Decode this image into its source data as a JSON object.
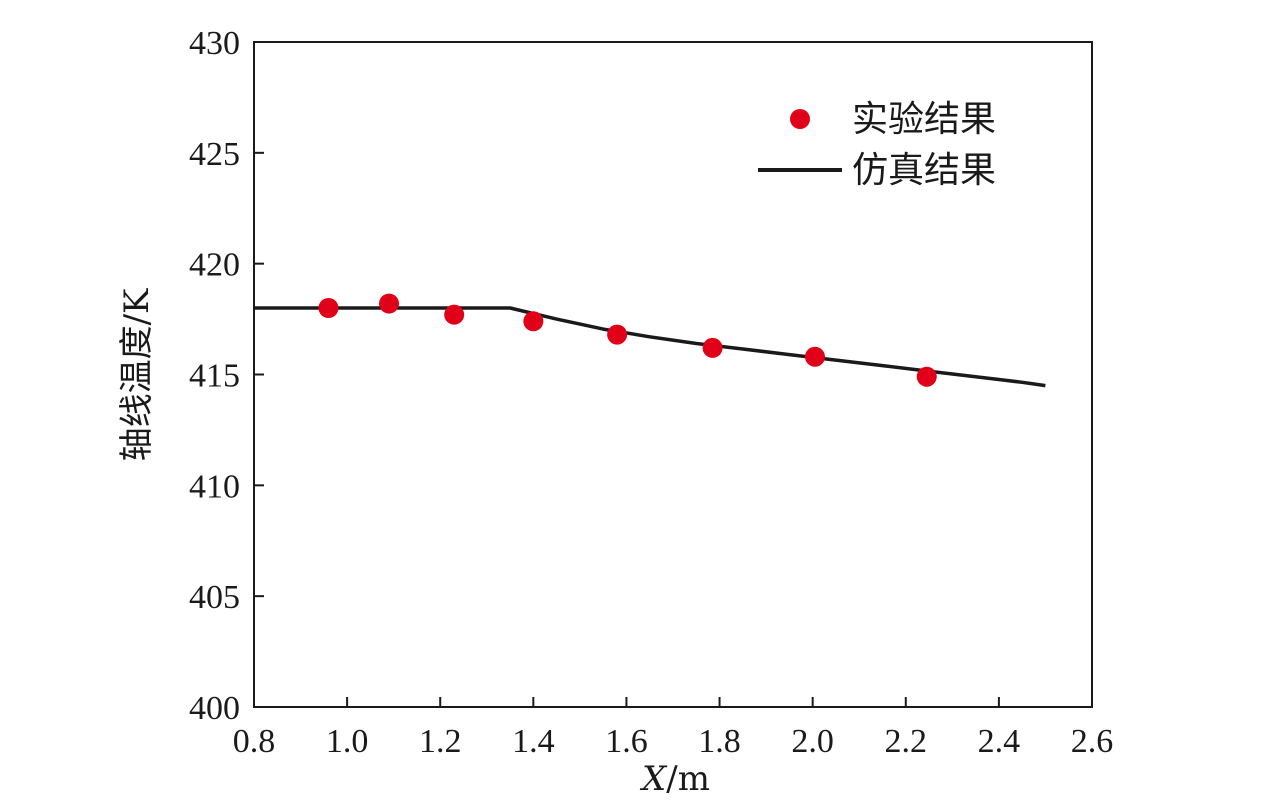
{
  "chart_data": {
    "type": "line",
    "xlabel_var": "X",
    "xlabel_unit": "/m",
    "ylabel": "轴线温度/K",
    "xlim": [
      0.8,
      2.6
    ],
    "ylim": [
      400,
      430
    ],
    "x_ticks": [
      "0.8",
      "1.0",
      "1.2",
      "1.4",
      "1.6",
      "1.8",
      "2.0",
      "2.2",
      "2.4",
      "2.6"
    ],
    "y_ticks": [
      "400",
      "405",
      "410",
      "415",
      "420",
      "425",
      "430"
    ],
    "grid": false,
    "legend_position": "top-right",
    "series": [
      {
        "name": "实验结果",
        "kind": "scatter",
        "color": "#e00018",
        "x": [
          0.96,
          1.09,
          1.23,
          1.4,
          1.58,
          1.785,
          2.005,
          2.245
        ],
        "y": [
          418.0,
          418.2,
          417.7,
          417.4,
          416.8,
          416.2,
          415.8,
          414.9
        ]
      },
      {
        "name": "仿真结果",
        "kind": "line",
        "color": "#1a1a1a",
        "x": [
          0.8,
          1.35,
          1.45,
          1.55,
          1.65,
          1.75,
          1.85,
          1.95,
          2.05,
          2.15,
          2.25,
          2.35,
          2.45,
          2.5
        ],
        "y": [
          418.0,
          418.0,
          417.5,
          417.05,
          416.7,
          416.4,
          416.15,
          415.9,
          415.65,
          415.4,
          415.15,
          414.9,
          414.65,
          414.5
        ]
      }
    ]
  }
}
